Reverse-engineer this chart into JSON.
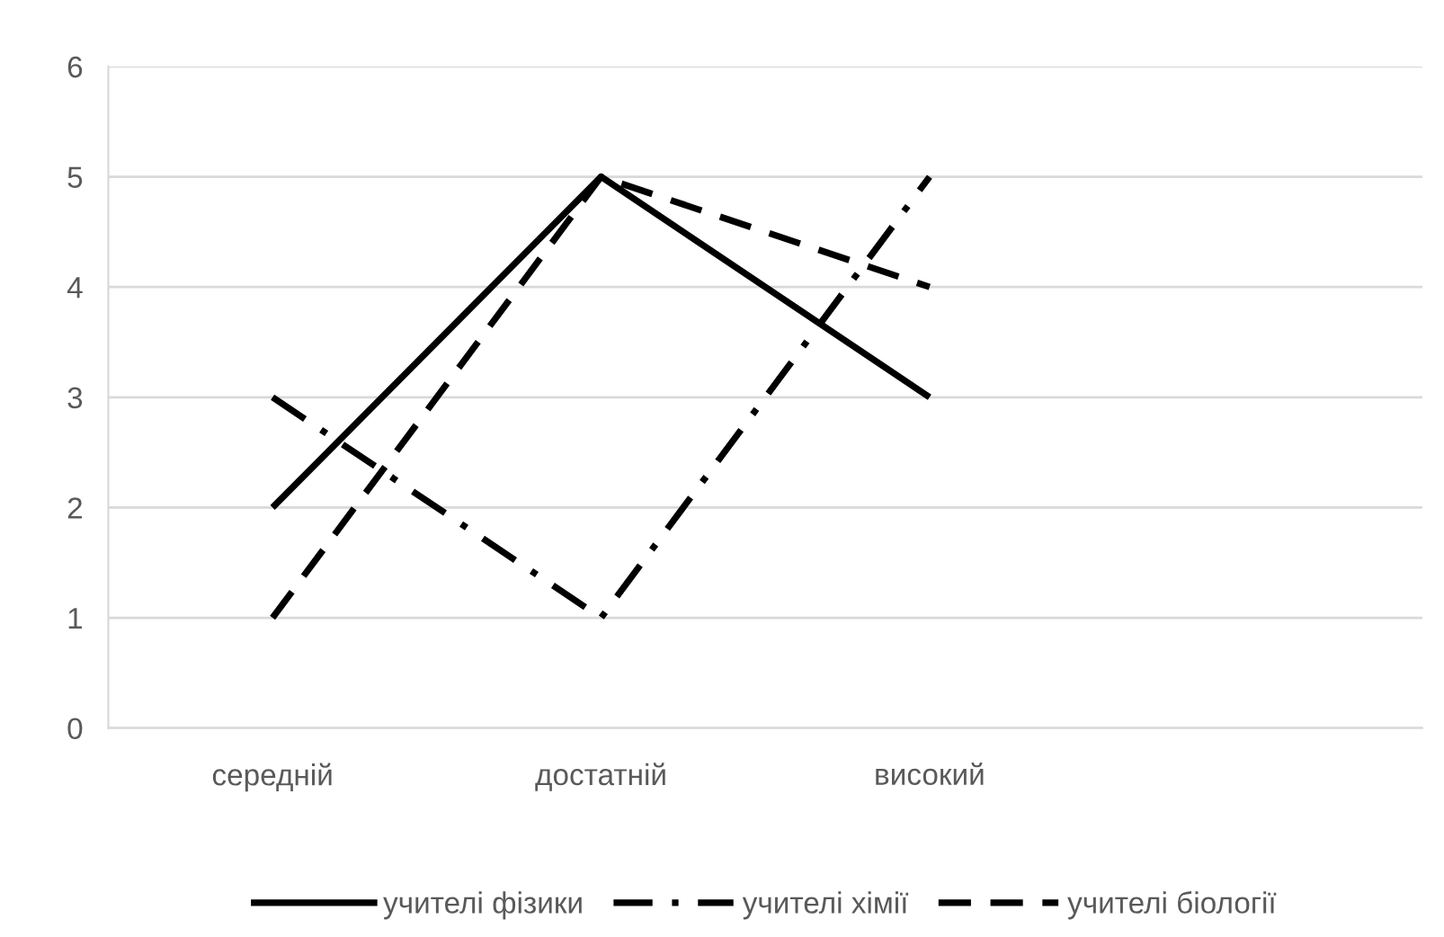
{
  "chart_data": {
    "type": "line",
    "categories": [
      "середній",
      "достатній",
      "високий",
      null
    ],
    "series": [
      {
        "name": "учителі фізики",
        "color": "#000000",
        "line_style": "solid",
        "values": [
          2,
          5,
          3,
          null
        ]
      },
      {
        "name": "учителі хімії",
        "color": "#000000",
        "line_style": "dashdot",
        "values": [
          3,
          1,
          5,
          null
        ]
      },
      {
        "name": "учителі біології",
        "color": "#000000",
        "line_style": "dashed",
        "values": [
          1,
          5,
          4,
          null
        ]
      }
    ],
    "ylim": [
      0,
      6
    ],
    "yticks": [
      0,
      1,
      2,
      3,
      4,
      5,
      6
    ],
    "grid": "y",
    "legend": "bottom",
    "marker": "none"
  }
}
